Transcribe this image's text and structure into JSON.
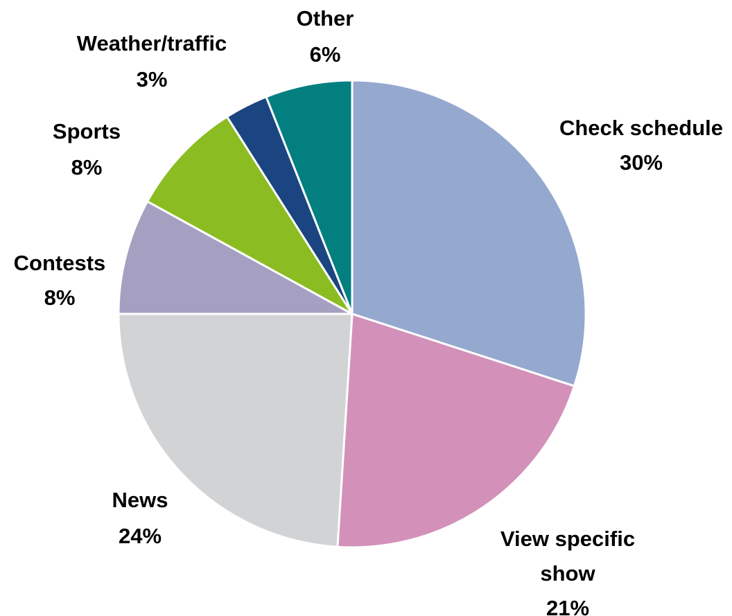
{
  "chart_data": {
    "type": "pie",
    "title": "",
    "start_angle_deg": 0,
    "direction": "clockwise",
    "slices": [
      {
        "label": "Check schedule",
        "value": 30,
        "value_label": "30%",
        "color": "#95A9CF"
      },
      {
        "label": "View specific show",
        "value": 21,
        "value_label": "21%",
        "color": "#D391B9"
      },
      {
        "label": "News",
        "value": 24,
        "value_label": "24%",
        "color": "#D1D3D4"
      },
      {
        "label": "Contests",
        "value": 8,
        "value_label": "8%",
        "color": "#A59FC2"
      },
      {
        "label": "Sports",
        "value": 8,
        "value_label": "8%",
        "color": "#8BBC21"
      },
      {
        "label": "Weather/traffic",
        "value": 3,
        "value_label": "3%",
        "color": "#1B4580"
      },
      {
        "label": "Other",
        "value": 6,
        "value_label": "6%",
        "color": "#037F80"
      }
    ]
  }
}
